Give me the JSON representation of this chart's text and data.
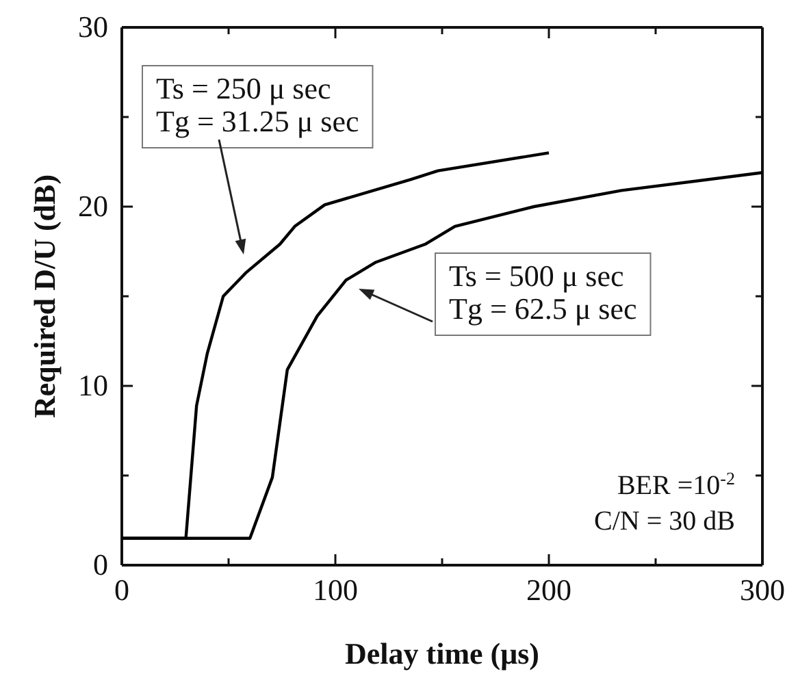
{
  "chart_data": {
    "type": "line",
    "xlabel": "Delay time (μs)",
    "ylabel": "Required D/U (dB)",
    "xlim": [
      0,
      300
    ],
    "ylim": [
      0,
      30
    ],
    "xticks": [
      0,
      {
        "value": 50,
        "label": null
      },
      100,
      {
        "value": 150,
        "label": null
      },
      200,
      {
        "value": 250,
        "label": null
      },
      300
    ],
    "yticks": [
      0,
      {
        "value": 5,
        "label": null
      },
      10,
      {
        "value": 15,
        "label": null
      },
      20,
      {
        "value": 25,
        "label": null
      },
      30
    ],
    "grid": false,
    "marker": "none",
    "line_style": "solid",
    "series": [
      {
        "color": "#000000",
        "x": [
          0,
          30,
          35,
          40,
          47.5,
          58,
          74,
          81,
          95,
          135,
          148,
          200
        ],
        "values": [
          1.5,
          1.5,
          8.9,
          11.8,
          15,
          16.3,
          17.9,
          18.9,
          20.1,
          21.5,
          22,
          23
        ]
      },
      {
        "color": "#000000",
        "x": [
          0,
          60,
          70.5,
          77.5,
          91.5,
          105,
          119,
          142,
          156,
          193,
          234,
          300
        ],
        "values": [
          1.5,
          1.5,
          4.9,
          10.9,
          13.9,
          15.9,
          16.9,
          17.9,
          18.9,
          20,
          20.9,
          21.9
        ]
      }
    ],
    "annotations": [
      "Ts = 250 μ sec\nTg = 31.25 μ sec",
      "Ts = 500 μ sec\nTg = 62.5 μ sec",
      "BER =10$^{-2}$",
      "C/N = 30 dB"
    ]
  }
}
